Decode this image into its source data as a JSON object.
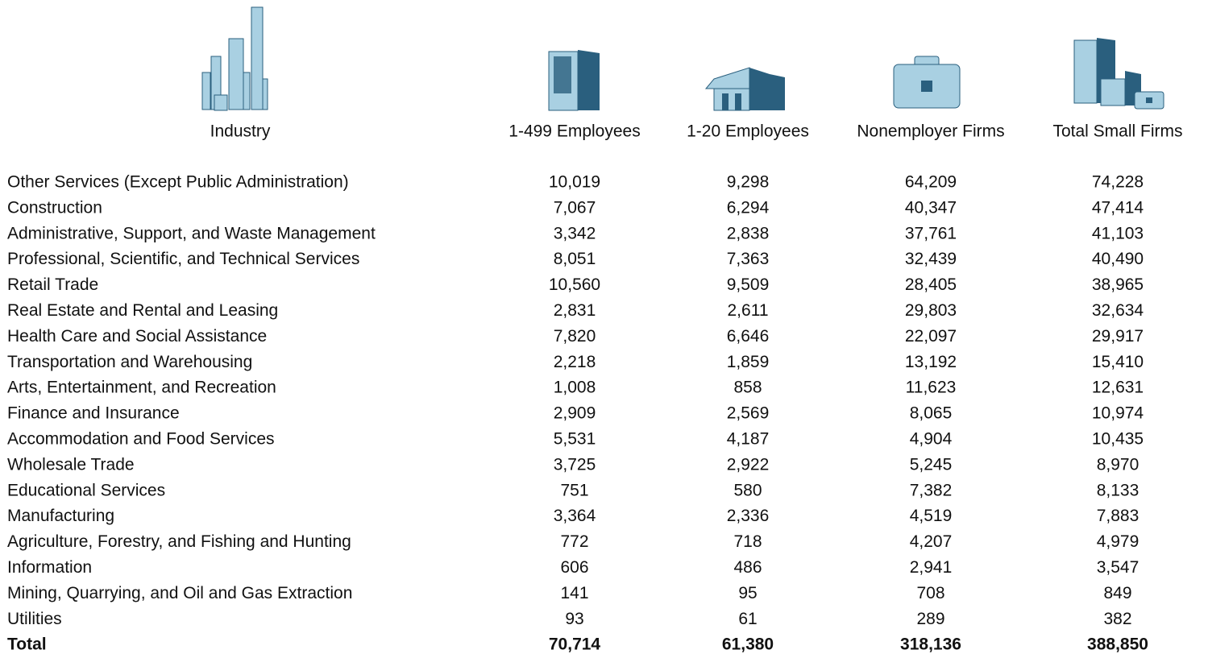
{
  "table": {
    "headers": [
      "Industry",
      "1-499 Employees",
      "1-20 Employees",
      "Nonemployer Firms",
      "Total Small Firms"
    ],
    "rows": [
      [
        "Other Services (Except Public Administration)",
        "10,019",
        "9,298",
        "64,209",
        "74,228"
      ],
      [
        "Construction",
        "7,067",
        "6,294",
        "40,347",
        "47,414"
      ],
      [
        "Administrative, Support, and Waste Management",
        "3,342",
        "2,838",
        "37,761",
        "41,103"
      ],
      [
        "Professional, Scientific, and Technical Services",
        "8,051",
        "7,363",
        "32,439",
        "40,490"
      ],
      [
        "Retail Trade",
        "10,560",
        "9,509",
        "28,405",
        "38,965"
      ],
      [
        "Real Estate and Rental and Leasing",
        "2,831",
        "2,611",
        "29,803",
        "32,634"
      ],
      [
        "Health Care and Social Assistance",
        "7,820",
        "6,646",
        "22,097",
        "29,917"
      ],
      [
        "Transportation and Warehousing",
        "2,218",
        "1,859",
        "13,192",
        "15,410"
      ],
      [
        "Arts, Entertainment, and Recreation",
        "1,008",
        "858",
        "11,623",
        "12,631"
      ],
      [
        "Finance and Insurance",
        "2,909",
        "2,569",
        "8,065",
        "10,974"
      ],
      [
        "Accommodation and Food Services",
        "5,531",
        "4,187",
        "4,904",
        "10,435"
      ],
      [
        "Wholesale Trade",
        "3,725",
        "2,922",
        "5,245",
        "8,970"
      ],
      [
        "Educational Services",
        "751",
        "580",
        "7,382",
        "8,133"
      ],
      [
        "Manufacturing",
        "3,364",
        "2,336",
        "4,519",
        "7,883"
      ],
      [
        "Agriculture, Forestry, and Fishing and Hunting",
        "772",
        "718",
        "4,207",
        "4,979"
      ],
      [
        "Information",
        "606",
        "486",
        "2,941",
        "3,547"
      ],
      [
        "Mining, Quarrying, and Oil and Gas Extraction",
        "141",
        "95",
        "708",
        "849"
      ],
      [
        "Utilities",
        "93",
        "61",
        "289",
        "382"
      ]
    ],
    "total": [
      "Total",
      "70,714",
      "61,380",
      "318,136",
      "388,850"
    ]
  }
}
